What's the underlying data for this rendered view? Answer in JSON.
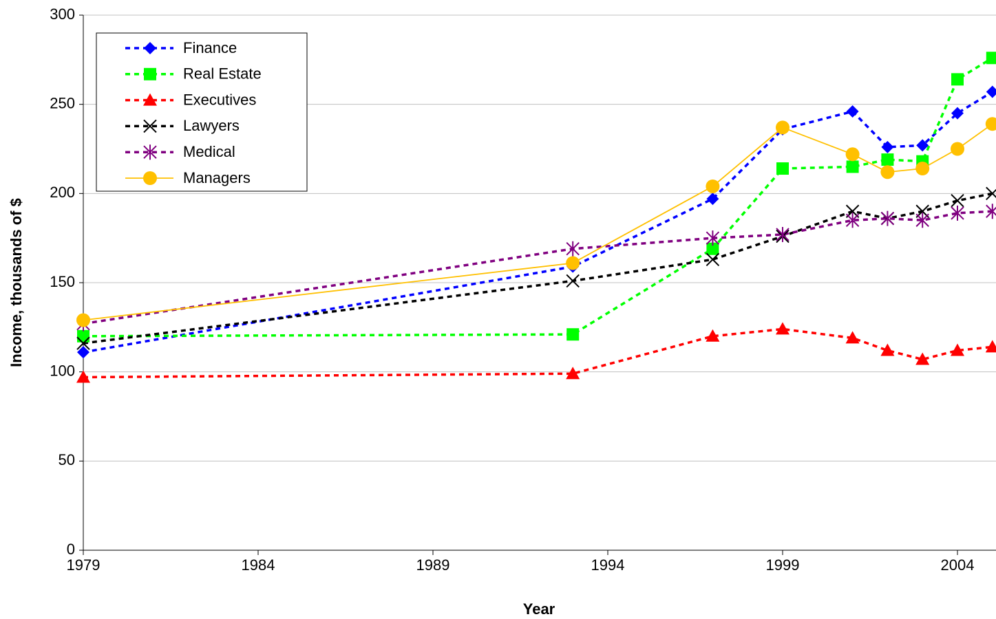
{
  "chart_data": {
    "type": "line",
    "xlabel": "Year",
    "ylabel": "Income, thousands of $",
    "x": [
      1979,
      1993,
      1997,
      1999,
      2001,
      2002,
      2003,
      2004,
      2005
    ],
    "series": [
      {
        "name": "Finance",
        "color": "#0000ff",
        "marker": "diamond",
        "dashed": true,
        "values": [
          111,
          159,
          197,
          236,
          246,
          226,
          227,
          245,
          257
        ]
      },
      {
        "name": "Real Estate",
        "color": "#00ff00",
        "marker": "square",
        "dashed": true,
        "values": [
          120,
          121,
          169,
          214,
          215,
          219,
          218,
          264,
          276
        ]
      },
      {
        "name": "Executives",
        "color": "#ff0000",
        "marker": "triangle",
        "dashed": true,
        "values": [
          97,
          99,
          120,
          124,
          119,
          112,
          107,
          112,
          114
        ]
      },
      {
        "name": "Lawyers",
        "color": "#000000",
        "marker": "x",
        "dashed": true,
        "values": [
          116,
          151,
          163,
          176,
          190,
          186,
          190,
          196,
          200
        ]
      },
      {
        "name": "Medical",
        "color": "#800080",
        "marker": "asterisk",
        "dashed": true,
        "values": [
          127,
          169,
          175,
          177,
          185,
          186,
          185,
          189,
          190
        ]
      },
      {
        "name": "Managers",
        "color": "#ffc000",
        "marker": "circle",
        "dashed": false,
        "values": [
          129,
          161,
          204,
          237,
          222,
          212,
          214,
          225,
          239
        ]
      }
    ],
    "xlim": [
      1979,
      2005
    ],
    "xticks": [
      1979,
      1984,
      1989,
      1994,
      1999,
      2004
    ],
    "ylim": [
      0,
      300
    ],
    "yticks": [
      0,
      50,
      100,
      150,
      200,
      250,
      300
    ],
    "grid": true,
    "legend": "top-left"
  }
}
